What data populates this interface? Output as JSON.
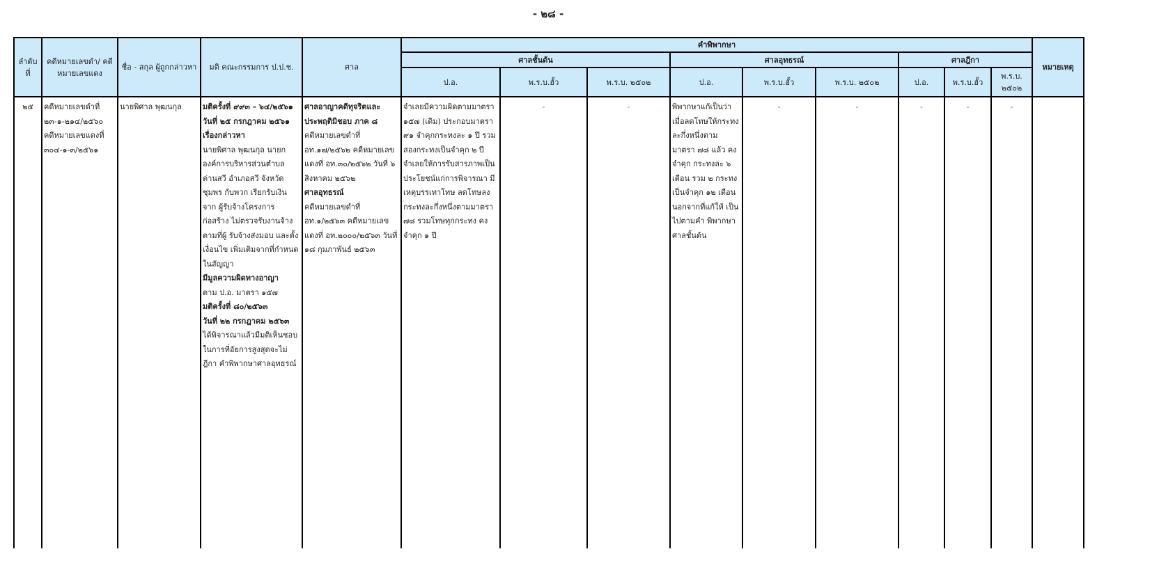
{
  "page_number": "- ๒๘ -",
  "headers": {
    "no": "ลำดับ ที่",
    "case": "คดีหมายเลขดำ/ คดีหมายเลขแดง",
    "name": "ชื่อ - สกุล ผู้ถูกกล่าวหา",
    "resolution": "มติ คณะกรรมการ ป.ป.ช.",
    "court": "ศาล",
    "judgment": "คำพิพากษา",
    "first": "ศาลชั้นต้น",
    "appeal": "ศาลอุทธรณ์",
    "supreme": "ศาลฎีกา",
    "remark": "หมายเหตุ",
    "po": "ป.อ.",
    "old_act": "พ.ร.บ.ฮั้ว",
    "act2502": "พ.ร.บ. ๒๕๐๒",
    "act2502_short": "พ.ร.บ. ๒๕๐๒"
  },
  "row": {
    "no": "๒๕",
    "case": [
      "คดีหมายเลขดำที่",
      "๒๓-๑-๒๑๔/๒๕๖๐",
      "คดีหมายเลขแดงที่",
      "๓๐๔-๑-๓/๒๕๖๑"
    ],
    "name": "นายพิศาล  พุฒนกุล",
    "resolution": [
      {
        "t": "มติครั้งที่ ๙๙๓ – ๖๔/๒๕๖๑",
        "b": true
      },
      {
        "t": "วันที่ ๒๕ กรกฎาคม ๒๕๖๑",
        "b": true
      },
      {
        "t": "เรื่องกล่าวหา",
        "b": true
      },
      {
        "t": "นายพิศาล  พุฒนกุล นายก องค์การบริหารส่วนตำบล ด่านสวี อำเภอสวี จังหวัด ชุมพร กับพวก เรียกรับเงินจาก ผู้รับจ้างโครงการก่อสร้าง ไม่ตรวจรับงานจ้างตามที่ผู้ รับจ้างส่งมอบ และตั้งเงื่อนไข เพิ่มเติมจากที่กำหนดในสัญญา",
        "b": false
      },
      {
        "t": "มีมูลความผิดทางอาญา",
        "b": true
      },
      {
        "t": "ตาม ป.อ. มาตรา ๑๕๗",
        "b": false
      },
      {
        "t": "มติครั้งที่ ๘๐/๒๕๖๓",
        "b": true
      },
      {
        "t": "วันที่ ๒๒ กรกฎาคม ๒๕๖๓",
        "b": true
      },
      {
        "t": "ได้พิจารณาแล้วมีมติเห็นชอบ ในการที่อัยการสูงสุดจะไม่ฎีกา คำพิพากษาศาลอุทธรณ์",
        "b": false
      }
    ],
    "court": [
      {
        "t": "ศาลอาญาคดีทุจริตและ ประพฤติมิชอบ ภาค ๘",
        "b": true
      },
      {
        "t": "คดีหมายเลขดำที่ อท.๑๗/๒๕๖๒ คดีหมายเลขแดงที่ อท.๓๐/๒๕๖๒ วันที่ ๖ สิงหาคม ๒๕๖๒",
        "b": false
      },
      {
        "t": "ศาลอุทธรณ์",
        "b": true
      },
      {
        "t": "คดีหมายเลขดำที่ อท.๑/๒๕๖๓ คดีหมายเลขแดงที่ อท.๒๐๐๐/๒๕๖๓ วันที่ ๑๘ กุมภาพันธ์ ๒๕๖๓",
        "b": false
      }
    ],
    "first_po": "จำเลยมีความผิดตามมาตรา ๑๕๗ (เดิม) ประกอบมาตรา ๙๑ จำคุกกระทงละ ๑ ปี รวม สองกระทงเป็นจำคุก ๒ ปี จำเลยให้การรับสารภาพเป็น ประโยชน์แก่การพิจารณา มีเหตุบรรเทาโทษ ลดโทษลง กระทงละกึ่งหนึ่งตามมาตรา ๗๘ รวมโทษทุกกระทง คง จำคุก ๑ ปี",
    "appeal_po": "พิพากษาแก้เป็นว่า เมื่อลดโทษให้กระทง ละกึ่งหนึ่งตามมาตรา ๗๘ แล้ว คงจำคุก กระทงละ ๖ เดือน รวม ๒ กระทง เป็นจำคุก ๑๒ เดือน นอกจากที่แก้ให้ เป็นไปตามคำ พิพากษาศาลชั้นต้น",
    "dash": "-",
    "remark": ""
  },
  "colors": {
    "header_bg": "#cdeafb"
  }
}
